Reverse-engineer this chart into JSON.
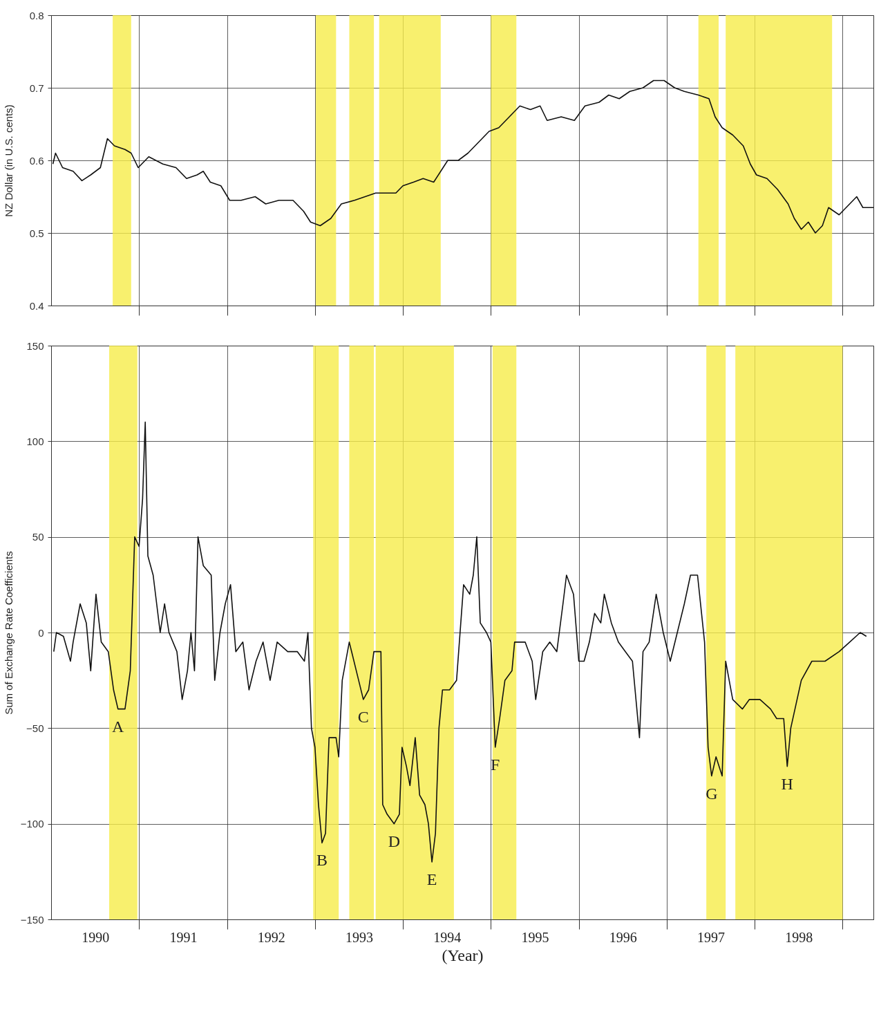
{
  "chart_data": [
    {
      "type": "line",
      "ylabel": "NZ Dollar (in U.S. cents)",
      "xlim": [
        1990,
        1999.35
      ],
      "ylim": [
        0.4,
        0.8
      ],
      "yticks": [
        0.4,
        0.5,
        0.6,
        0.7,
        0.8
      ],
      "xticks": [
        {
          "value": 1991,
          "label": null
        },
        {
          "value": 1992,
          "label": null
        },
        {
          "value": 1993,
          "label": null
        },
        {
          "value": 1994,
          "label": null
        },
        {
          "value": 1995,
          "label": null
        },
        {
          "value": 1996,
          "label": null
        },
        {
          "value": 1997,
          "label": null
        },
        {
          "value": 1998,
          "label": null
        },
        {
          "value": 1999,
          "label": null
        }
      ],
      "tick_labels": "y",
      "grid": true,
      "marker": "none",
      "series": [
        {
          "color": "#111111",
          "x": [
            1990.02,
            1990.05,
            1990.13,
            1990.25,
            1990.35,
            1990.45,
            1990.56,
            1990.64,
            1990.72,
            1990.84,
            1990.91,
            1990.99,
            1991.11,
            1991.27,
            1991.42,
            1991.54,
            1991.66,
            1991.73,
            1991.81,
            1991.93,
            1992.03,
            1992.16,
            1992.32,
            1992.44,
            1992.59,
            1992.75,
            1992.87,
            1992.95,
            1993.06,
            1993.18,
            1993.3,
            1993.45,
            1993.57,
            1993.69,
            1993.8,
            1993.92,
            1994.0,
            1994.12,
            1994.23,
            1994.35,
            1994.43,
            1994.51,
            1994.63,
            1994.74,
            1994.86,
            1994.98,
            1995.09,
            1995.21,
            1995.33,
            1995.45,
            1995.56,
            1995.64,
            1995.8,
            1995.95,
            1996.07,
            1996.23,
            1996.34,
            1996.46,
            1996.58,
            1996.73,
            1996.85,
            1996.97,
            1997.09,
            1997.2,
            1997.36,
            1997.48,
            1997.55,
            1997.63,
            1997.75,
            1997.87,
            1997.95,
            1998.02,
            1998.14,
            1998.26,
            1998.38,
            1998.45,
            1998.53,
            1998.61,
            1998.69,
            1998.77,
            1998.84,
            1998.96,
            1999.08,
            1999.16,
            1999.23,
            1999.35
          ],
          "values": [
            0.595,
            0.61,
            0.59,
            0.585,
            0.572,
            0.58,
            0.59,
            0.63,
            0.62,
            0.615,
            0.61,
            0.59,
            0.605,
            0.595,
            0.59,
            0.575,
            0.58,
            0.585,
            0.57,
            0.565,
            0.545,
            0.545,
            0.55,
            0.54,
            0.545,
            0.545,
            0.53,
            0.515,
            0.51,
            0.52,
            0.54,
            0.545,
            0.55,
            0.555,
            0.555,
            0.555,
            0.565,
            0.57,
            0.575,
            0.57,
            0.585,
            0.6,
            0.6,
            0.61,
            0.625,
            0.64,
            0.645,
            0.66,
            0.675,
            0.67,
            0.675,
            0.655,
            0.66,
            0.655,
            0.675,
            0.68,
            0.69,
            0.685,
            0.695,
            0.7,
            0.71,
            0.71,
            0.7,
            0.695,
            0.69,
            0.685,
            0.66,
            0.645,
            0.635,
            0.62,
            0.595,
            0.58,
            0.575,
            0.56,
            0.54,
            0.52,
            0.505,
            0.515,
            0.5,
            0.51,
            0.535,
            0.525,
            0.54,
            0.55,
            0.535,
            0.535
          ]
        }
      ],
      "bands": [
        {
          "axis": "x",
          "from": 1990.7,
          "to": 1990.91,
          "color": "#f6ec4a"
        },
        {
          "axis": "x",
          "from": 1993.01,
          "to": 1993.24,
          "color": "#f6ec4a"
        },
        {
          "axis": "x",
          "from": 1993.39,
          "to": 1993.67,
          "color": "#f6ec4a"
        },
        {
          "axis": "x",
          "from": 1993.73,
          "to": 1994.43,
          "color": "#f6ec4a"
        },
        {
          "axis": "x",
          "from": 1995.0,
          "to": 1995.29,
          "color": "#f6ec4a"
        },
        {
          "axis": "x",
          "from": 1997.36,
          "to": 1997.59,
          "color": "#f6ec4a"
        },
        {
          "axis": "x",
          "from": 1997.67,
          "to": 1998.88,
          "color": "#f6ec4a"
        }
      ]
    },
    {
      "type": "line",
      "ylabel": "Sum of  Exchange Rate Coefficients",
      "xlabel": "(Year)",
      "xlim": [
        1990,
        1999.35
      ],
      "ylim": [
        -150,
        150
      ],
      "yticks": [
        -150,
        -100,
        -50,
        0,
        50,
        100,
        150
      ],
      "xticks": [
        {
          "value": 1990.5,
          "label": "1990"
        },
        {
          "value": 1991,
          "label": null
        },
        {
          "value": 1991.5,
          "label": "1991"
        },
        {
          "value": 1992,
          "label": null
        },
        {
          "value": 1992.5,
          "label": "1992"
        },
        {
          "value": 1993,
          "label": null
        },
        {
          "value": 1993.5,
          "label": "1993"
        },
        {
          "value": 1994,
          "label": null
        },
        {
          "value": 1994.5,
          "label": "1994"
        },
        {
          "value": 1995,
          "label": null
        },
        {
          "value": 1995.5,
          "label": "1995"
        },
        {
          "value": 1996,
          "label": null
        },
        {
          "value": 1996.5,
          "label": "1996"
        },
        {
          "value": 1997,
          "label": null
        },
        {
          "value": 1997.5,
          "label": "1997"
        },
        {
          "value": 1998,
          "label": null
        },
        {
          "value": 1998.5,
          "label": "1998"
        },
        {
          "value": 1999,
          "label": null
        }
      ],
      "grid": true,
      "marker": "none",
      "series": [
        {
          "color": "#111111",
          "x": [
            1990.03,
            1990.06,
            1990.14,
            1990.22,
            1990.25,
            1990.33,
            1990.4,
            1990.45,
            1990.51,
            1990.57,
            1990.65,
            1990.71,
            1990.76,
            1990.84,
            1990.9,
            1990.95,
            1991.0,
            1991.04,
            1991.07,
            1991.1,
            1991.16,
            1991.24,
            1991.29,
            1991.34,
            1991.43,
            1991.49,
            1991.55,
            1991.59,
            1991.63,
            1991.67,
            1991.73,
            1991.82,
            1991.86,
            1991.92,
            1991.98,
            1992.04,
            1992.1,
            1992.18,
            1992.25,
            1992.33,
            1992.41,
            1992.49,
            1992.57,
            1992.69,
            1992.8,
            1992.88,
            1992.92,
            1992.96,
            1993.0,
            1993.04,
            1993.08,
            1993.12,
            1993.16,
            1993.24,
            1993.27,
            1993.31,
            1993.39,
            1993.47,
            1993.55,
            1993.61,
            1993.67,
            1993.75,
            1993.77,
            1993.82,
            1993.9,
            1993.96,
            1993.99,
            1994.04,
            1994.08,
            1994.14,
            1994.19,
            1994.25,
            1994.29,
            1994.33,
            1994.37,
            1994.41,
            1994.45,
            1994.53,
            1994.61,
            1994.69,
            1994.76,
            1994.8,
            1994.84,
            1994.88,
            1994.95,
            1995.0,
            1995.05,
            1995.1,
            1995.16,
            1995.24,
            1995.27,
            1995.39,
            1995.47,
            1995.51,
            1995.59,
            1995.67,
            1995.75,
            1995.82,
            1995.86,
            1995.94,
            1996.0,
            1996.06,
            1996.12,
            1996.18,
            1996.25,
            1996.29,
            1996.37,
            1996.45,
            1996.53,
            1996.61,
            1996.69,
            1996.73,
            1996.8,
            1996.88,
            1996.96,
            1997.04,
            1997.12,
            1997.2,
            1997.27,
            1997.35,
            1997.43,
            1997.47,
            1997.51,
            1997.56,
            1997.63,
            1997.67,
            1997.75,
            1997.86,
            1997.94,
            1998.06,
            1998.18,
            1998.25,
            1998.33,
            1998.37,
            1998.41,
            1998.53,
            1998.65,
            1998.8,
            1998.96,
            1999.08,
            1999.2,
            1999.27
          ],
          "values": [
            -10,
            0,
            -2,
            -15,
            -5,
            15,
            5,
            -20,
            20,
            -5,
            -10,
            -30,
            -40,
            -40,
            -20,
            50,
            45,
            70,
            110,
            40,
            30,
            0,
            15,
            0,
            -10,
            -35,
            -20,
            0,
            -20,
            50,
            35,
            30,
            -25,
            0,
            15,
            25,
            -10,
            -5,
            -30,
            -15,
            -5,
            -25,
            -5,
            -10,
            -10,
            -15,
            0,
            -50,
            -60,
            -90,
            -110,
            -105,
            -55,
            -55,
            -65,
            -25,
            -5,
            -20,
            -35,
            -30,
            -10,
            -10,
            -90,
            -95,
            -100,
            -95,
            -60,
            -70,
            -80,
            -55,
            -85,
            -90,
            -100,
            -120,
            -105,
            -50,
            -30,
            -30,
            -25,
            25,
            20,
            30,
            50,
            5,
            0,
            -5,
            -60,
            -45,
            -25,
            -20,
            -5,
            -5,
            -15,
            -35,
            -10,
            -5,
            -10,
            15,
            30,
            20,
            -15,
            -15,
            -5,
            10,
            5,
            20,
            5,
            -5,
            -10,
            -15,
            -55,
            -10,
            -5,
            20,
            0,
            -15,
            0,
            15,
            30,
            30,
            -5,
            -60,
            -75,
            -65,
            -75,
            -15,
            -35,
            -40,
            -35,
            -35,
            -40,
            -45,
            -45,
            -70,
            -50,
            -25,
            -15,
            -15,
            -10,
            -5,
            0,
            -2
          ]
        }
      ],
      "bands": [
        {
          "axis": "x",
          "from": 1990.66,
          "to": 1990.98,
          "color": "#f6ec4a"
        },
        {
          "axis": "x",
          "from": 1992.98,
          "to": 1993.27,
          "color": "#f6ec4a"
        },
        {
          "axis": "x",
          "from": 1993.39,
          "to": 1993.67,
          "color": "#f6ec4a"
        },
        {
          "axis": "x",
          "from": 1993.69,
          "to": 1994.58,
          "color": "#f6ec4a"
        },
        {
          "axis": "x",
          "from": 1995.02,
          "to": 1995.29,
          "color": "#f6ec4a"
        },
        {
          "axis": "x",
          "from": 1997.45,
          "to": 1997.67,
          "color": "#f6ec4a"
        },
        {
          "axis": "x",
          "from": 1997.78,
          "to": 1999.0,
          "color": "#f6ec4a"
        }
      ],
      "annotations": [
        {
          "text": "A",
          "x": 1990.76,
          "y": -40
        },
        {
          "text": "B",
          "x": 1993.08,
          "y": -110
        },
        {
          "text": "C",
          "x": 1993.55,
          "y": -35
        },
        {
          "text": "D",
          "x": 1993.9,
          "y": -100
        },
        {
          "text": "E",
          "x": 1994.33,
          "y": -120
        },
        {
          "text": "F",
          "x": 1995.05,
          "y": -60
        },
        {
          "text": "G",
          "x": 1997.51,
          "y": -75
        },
        {
          "text": "H",
          "x": 1998.37,
          "y": -70
        }
      ]
    }
  ]
}
